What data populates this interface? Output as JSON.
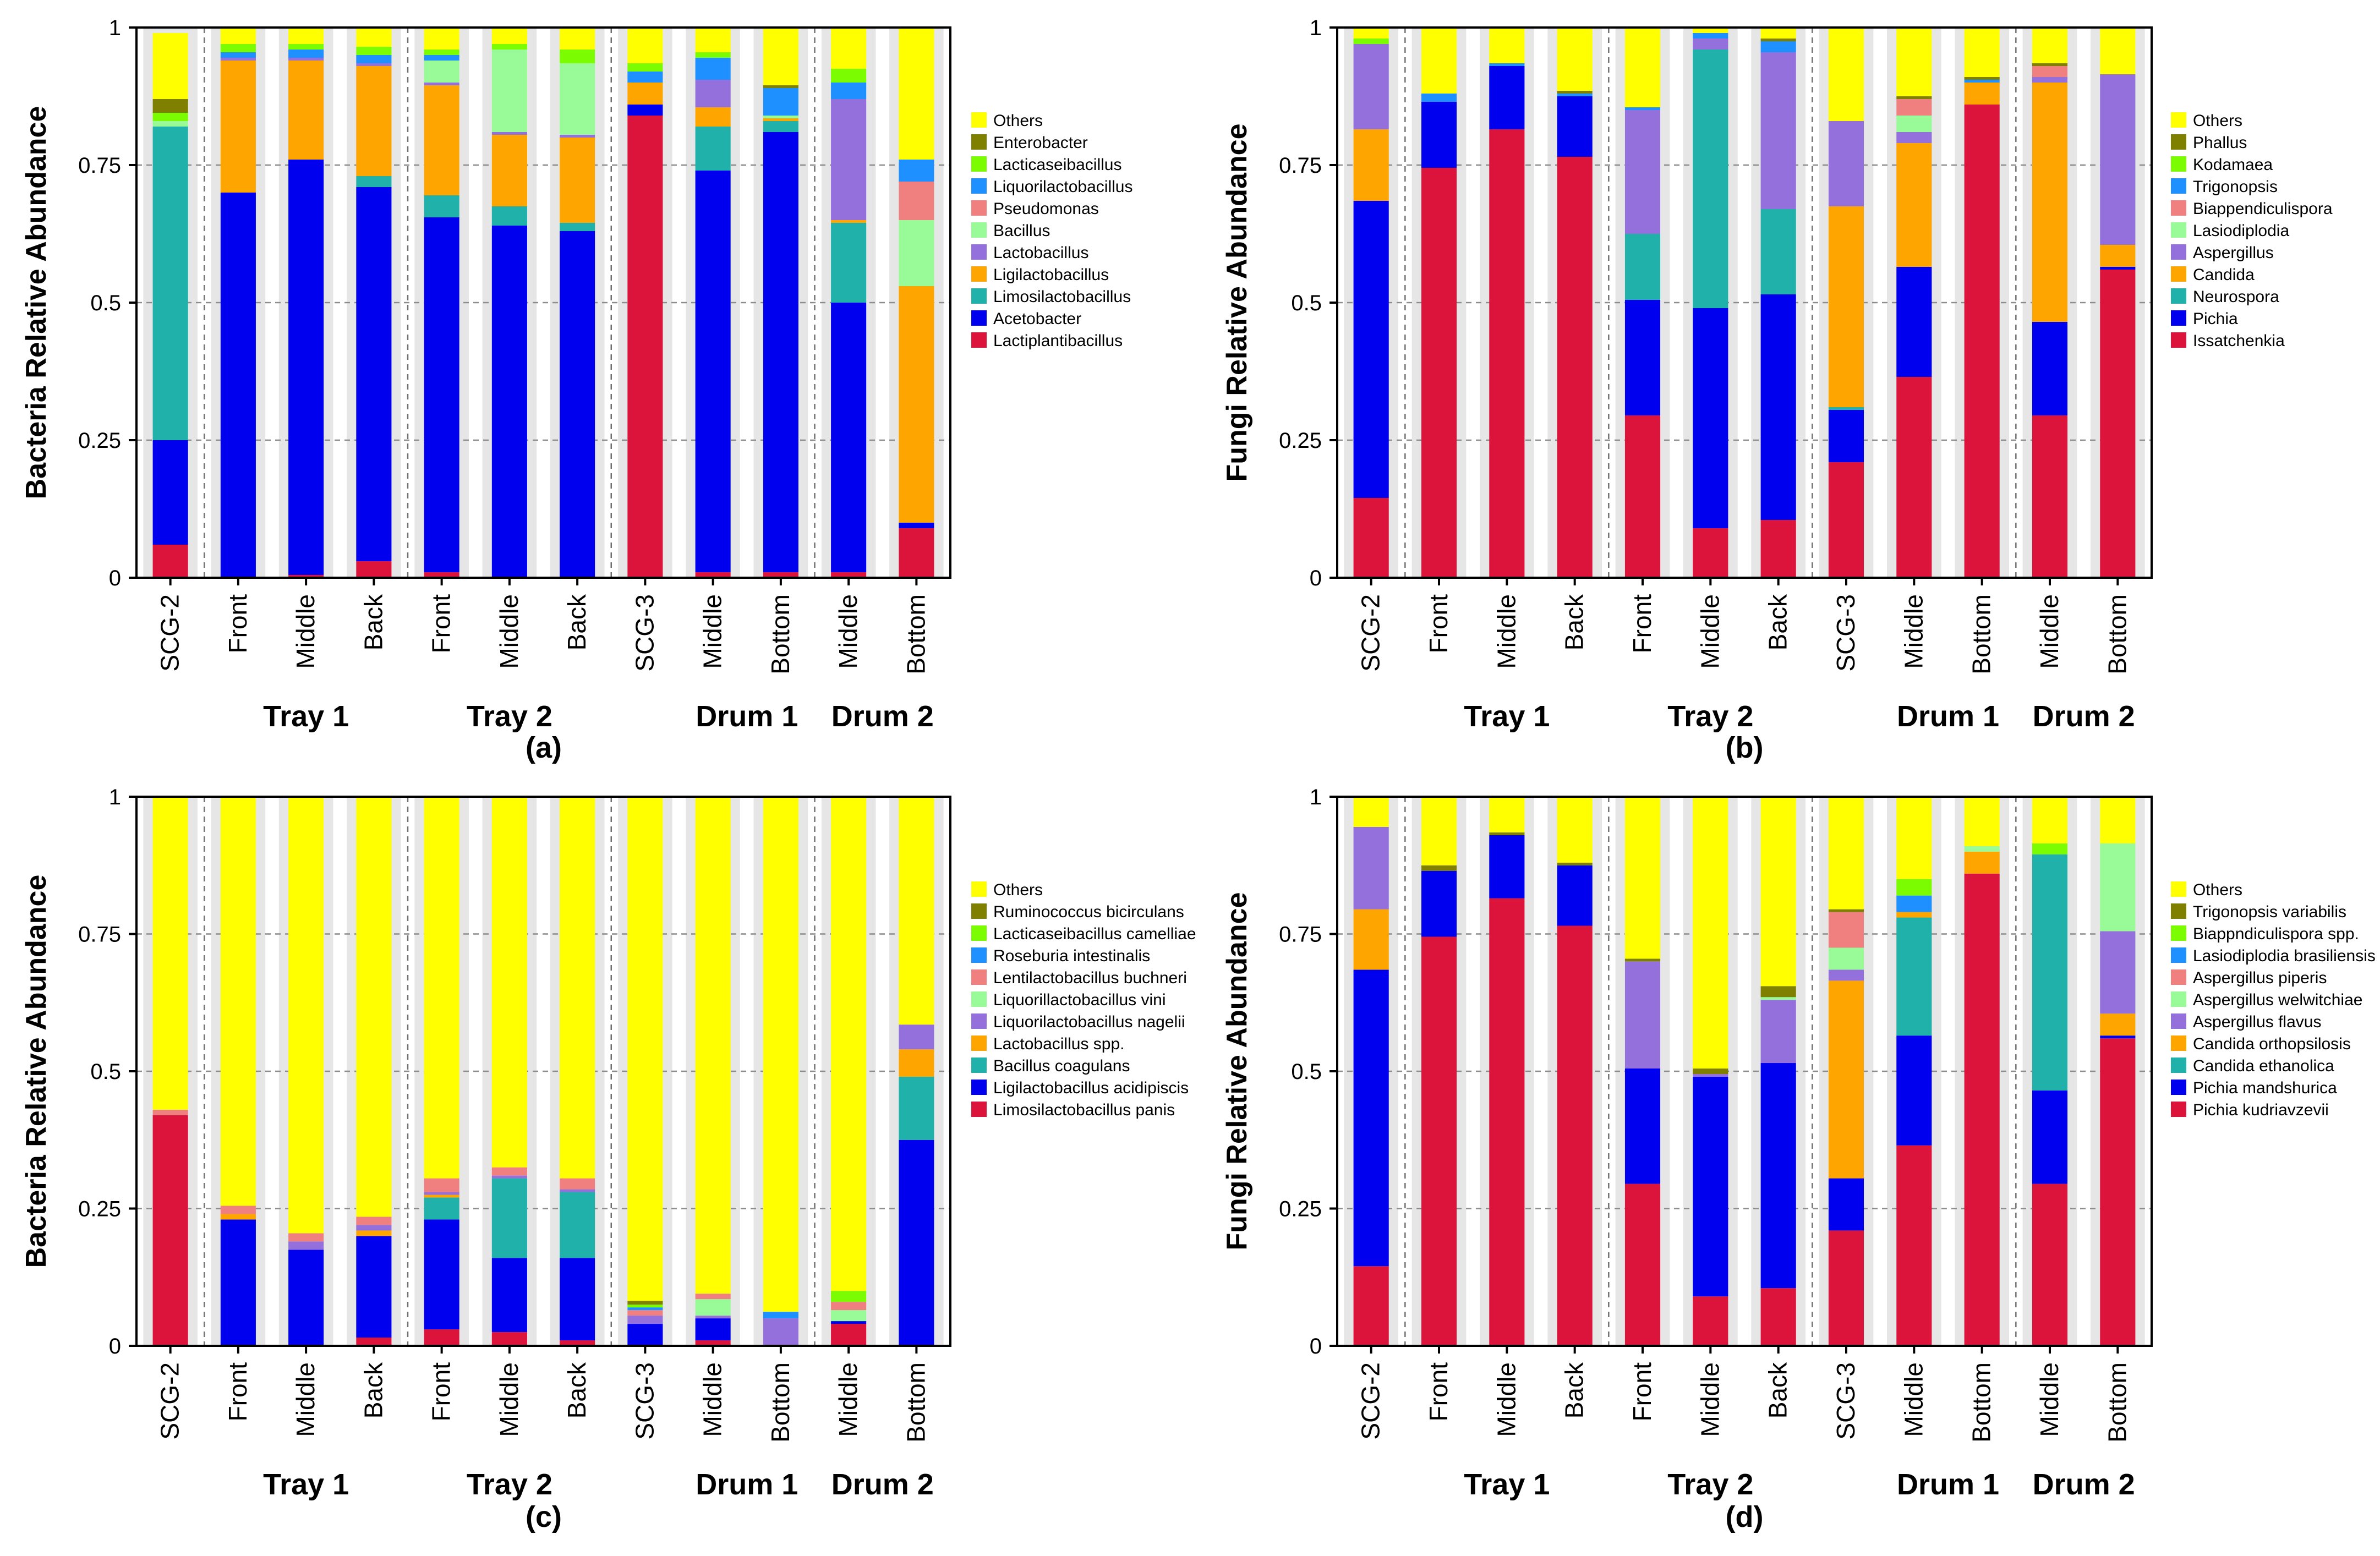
{
  "figure": {
    "categories": [
      "SCG-2",
      "Front",
      "Middle",
      "Back",
      "Front",
      "Middle",
      "Back",
      "SCG-3",
      "Middle",
      "Bottom",
      "Middle",
      "Bottom"
    ],
    "groups": [
      {
        "label": "Tray 1",
        "start": 1,
        "end": 3
      },
      {
        "label": "Tray 2",
        "start": 4,
        "end": 6
      },
      {
        "label": "Drum 1",
        "start": 8,
        "end": 9
      },
      {
        "label": "Drum 2",
        "start": 10,
        "end": 11
      }
    ],
    "separators_after": [
      0,
      3,
      6,
      9
    ],
    "yticks": [
      "0",
      "0.25",
      "0.5",
      "0.75",
      "1"
    ]
  },
  "chart_data": [
    {
      "type": "bar",
      "stacked": true,
      "panel": "(a)",
      "ylabel": "Bacteria Relative Abundance",
      "ylim": [
        0,
        1
      ],
      "series": [
        {
          "name": "Lactiplantibacillus",
          "color": "#DC143C",
          "values": [
            0.06,
            0.0,
            0.005,
            0.03,
            0.01,
            0.0,
            0.0,
            0.84,
            0.01,
            0.01,
            0.01,
            0.09
          ]
        },
        {
          "name": "Acetobacter",
          "color": "#0000EE",
          "values": [
            0.19,
            0.7,
            0.755,
            0.68,
            0.645,
            0.64,
            0.63,
            0.02,
            0.73,
            0.8,
            0.49,
            0.01
          ]
        },
        {
          "name": "Limosilactobacillus",
          "color": "#20B2AA",
          "values": [
            0.57,
            0.0,
            0.0,
            0.02,
            0.04,
            0.035,
            0.015,
            0.0,
            0.08,
            0.02,
            0.145,
            0.0
          ]
        },
        {
          "name": "Ligilactobacillus",
          "color": "#FFA500",
          "values": [
            0.0,
            0.24,
            0.18,
            0.2,
            0.2,
            0.13,
            0.155,
            0.04,
            0.035,
            0.005,
            0.005,
            0.43
          ]
        },
        {
          "name": "Lactobacillus",
          "color": "#9370DB",
          "values": [
            0.0,
            0.005,
            0.005,
            0.005,
            0.005,
            0.005,
            0.005,
            0.0,
            0.05,
            0.0,
            0.22,
            0.0
          ]
        },
        {
          "name": "Bacillus",
          "color": "#98FB98",
          "values": [
            0.01,
            0.0,
            0.0,
            0.0,
            0.04,
            0.15,
            0.13,
            0.0,
            0.0,
            0.005,
            0.0,
            0.12
          ]
        },
        {
          "name": "Pseudomonas",
          "color": "#F08080",
          "values": [
            0.0,
            0.0,
            0.0,
            0.0,
            0.0,
            0.0,
            0.0,
            0.0,
            0.0,
            0.0,
            0.0,
            0.07
          ]
        },
        {
          "name": "Liquorilactobacillus",
          "color": "#1E90FF",
          "values": [
            0.0,
            0.01,
            0.015,
            0.015,
            0.01,
            0.0,
            0.0,
            0.02,
            0.04,
            0.05,
            0.03,
            0.04
          ]
        },
        {
          "name": "Lacticaseibacillus",
          "color": "#7CFC00",
          "values": [
            0.015,
            0.015,
            0.01,
            0.015,
            0.01,
            0.01,
            0.025,
            0.015,
            0.01,
            0.0,
            0.025,
            0.0
          ]
        },
        {
          "name": "Enterobacter",
          "color": "#808000",
          "values": [
            0.025,
            0.0,
            0.0,
            0.0,
            0.0,
            0.0,
            0.0,
            0.0,
            0.0,
            0.005,
            0.0,
            0.0
          ]
        },
        {
          "name": "Others",
          "color": "#FFFF00",
          "values": [
            0.12,
            0.03,
            0.03,
            0.035,
            0.04,
            0.03,
            0.04,
            0.065,
            0.045,
            0.105,
            0.075,
            0.24
          ]
        }
      ]
    },
    {
      "type": "bar",
      "stacked": true,
      "panel": "(b)",
      "ylabel": "Fungi Relative Abundance",
      "ylim": [
        0,
        1
      ],
      "series": [
        {
          "name": "Issatchenkia",
          "color": "#DC143C",
          "values": [
            0.145,
            0.745,
            0.815,
            0.765,
            0.295,
            0.09,
            0.105,
            0.21,
            0.365,
            0.86,
            0.295,
            0.56
          ]
        },
        {
          "name": "Pichia",
          "color": "#0000EE",
          "values": [
            0.54,
            0.12,
            0.115,
            0.11,
            0.21,
            0.4,
            0.41,
            0.095,
            0.2,
            0.0,
            0.17,
            0.005
          ]
        },
        {
          "name": "Neurospora",
          "color": "#20B2AA",
          "values": [
            0.0,
            0.0,
            0.0,
            0.0,
            0.12,
            0.47,
            0.155,
            0.005,
            0.0,
            0.0,
            0.0,
            0.0
          ]
        },
        {
          "name": "Candida",
          "color": "#FFA500",
          "values": [
            0.13,
            0.0,
            0.0,
            0.0,
            0.0,
            0.0,
            0.0,
            0.365,
            0.225,
            0.04,
            0.435,
            0.04
          ]
        },
        {
          "name": "Aspergillus",
          "color": "#9370DB",
          "values": [
            0.155,
            0.0,
            0.0,
            0.0,
            0.225,
            0.02,
            0.285,
            0.155,
            0.02,
            0.0,
            0.01,
            0.31
          ]
        },
        {
          "name": "Lasiodiplodia",
          "color": "#98FB98",
          "values": [
            0.0,
            0.0,
            0.0,
            0.0,
            0.0,
            0.0,
            0.0,
            0.0,
            0.03,
            0.0,
            0.0,
            0.0
          ]
        },
        {
          "name": "Biappendiculispora",
          "color": "#F08080",
          "values": [
            0.0,
            0.0,
            0.0,
            0.0,
            0.0,
            0.0,
            0.0,
            0.0,
            0.03,
            0.0,
            0.02,
            0.0
          ]
        },
        {
          "name": "Trigonopsis",
          "color": "#1E90FF",
          "values": [
            0.0,
            0.015,
            0.005,
            0.005,
            0.005,
            0.01,
            0.02,
            0.0,
            0.0,
            0.005,
            0.0,
            0.0
          ]
        },
        {
          "name": "Kodamaea",
          "color": "#7CFC00",
          "values": [
            0.01,
            0.0,
            0.0,
            0.0,
            0.0,
            0.0,
            0.0,
            0.0,
            0.0,
            0.0,
            0.0,
            0.0
          ]
        },
        {
          "name": "Phallus",
          "color": "#808000",
          "values": [
            0.0,
            0.0,
            0.0,
            0.005,
            0.0,
            0.0,
            0.005,
            0.0,
            0.005,
            0.005,
            0.005,
            0.0
          ]
        },
        {
          "name": "Others",
          "color": "#FFFF00",
          "values": [
            0.02,
            0.12,
            0.065,
            0.115,
            0.145,
            0.01,
            0.025,
            0.17,
            0.125,
            0.09,
            0.065,
            0.085
          ]
        }
      ]
    },
    {
      "type": "bar",
      "stacked": true,
      "panel": "(c)",
      "ylabel": "Bacteria Relative Abundance",
      "ylim": [
        0,
        1
      ],
      "series": [
        {
          "name": "Limosilactobacillus panis",
          "color": "#DC143C",
          "values": [
            0.42,
            0.0,
            0.0,
            0.015,
            0.03,
            0.025,
            0.01,
            0.0,
            0.01,
            0.0,
            0.04,
            0.0
          ]
        },
        {
          "name": "Ligilactobacillus acidipiscis",
          "color": "#0000EE",
          "values": [
            0.0,
            0.23,
            0.175,
            0.185,
            0.2,
            0.135,
            0.15,
            0.04,
            0.04,
            0.0,
            0.005,
            0.375
          ]
        },
        {
          "name": "Bacillus coagulans",
          "color": "#20B2AA",
          "values": [
            0.0,
            0.0,
            0.0,
            0.0,
            0.04,
            0.145,
            0.12,
            0.0,
            0.0,
            0.0,
            0.0,
            0.115
          ]
        },
        {
          "name": "Lactobacillus spp.",
          "color": "#FFA500",
          "values": [
            0.0,
            0.01,
            0.0,
            0.01,
            0.005,
            0.0,
            0.0,
            0.0,
            0.0,
            0.0,
            0.0,
            0.05
          ]
        },
        {
          "name": "Liquorilactobacillus nagelii",
          "color": "#9370DB",
          "values": [
            0.0,
            0.0,
            0.015,
            0.01,
            0.005,
            0.005,
            0.005,
            0.015,
            0.005,
            0.05,
            0.0,
            0.045
          ]
        },
        {
          "name": "Liquorillactobacillus vini",
          "color": "#98FB98",
          "values": [
            0.0,
            0.0,
            0.0,
            0.0,
            0.0,
            0.0,
            0.0,
            0.0,
            0.03,
            0.0,
            0.02,
            0.0
          ]
        },
        {
          "name": "Lentilactobacillus buchneri",
          "color": "#F08080",
          "values": [
            0.01,
            0.015,
            0.015,
            0.015,
            0.025,
            0.015,
            0.02,
            0.01,
            0.01,
            0.0,
            0.015,
            0.0
          ]
        },
        {
          "name": "Roseburia intestinalis",
          "color": "#1E90FF",
          "values": [
            0.0,
            0.0,
            0.0,
            0.0,
            0.0,
            0.0,
            0.0,
            0.005,
            0.0,
            0.012,
            0.0,
            0.0
          ]
        },
        {
          "name": "Lacticaseibacillus camelliae",
          "color": "#7CFC00",
          "values": [
            0.0,
            0.0,
            0.0,
            0.0,
            0.0,
            0.0,
            0.0,
            0.005,
            0.0,
            0.0,
            0.02,
            0.0
          ]
        },
        {
          "name": "Ruminococcus bicirculans",
          "color": "#808000",
          "values": [
            0.0,
            0.0,
            0.0,
            0.0,
            0.0,
            0.0,
            0.0,
            0.007,
            0.0,
            0.0,
            0.0,
            0.0
          ]
        },
        {
          "name": "Others",
          "color": "#FFFF00",
          "values": [
            0.57,
            0.745,
            0.795,
            0.765,
            0.695,
            0.675,
            0.695,
            0.918,
            0.905,
            0.938,
            0.9,
            0.415
          ]
        }
      ]
    },
    {
      "type": "bar",
      "stacked": true,
      "panel": "(d)",
      "ylabel": "Fungi Relative Abundance",
      "ylim": [
        0,
        1
      ],
      "series": [
        {
          "name": "Pichia kudriavzevii",
          "color": "#DC143C",
          "values": [
            0.145,
            0.745,
            0.815,
            0.765,
            0.295,
            0.09,
            0.105,
            0.21,
            0.365,
            0.86,
            0.295,
            0.56
          ]
        },
        {
          "name": "Pichia mandshurica",
          "color": "#0000EE",
          "values": [
            0.54,
            0.12,
            0.115,
            0.11,
            0.21,
            0.4,
            0.41,
            0.095,
            0.2,
            0.0,
            0.17,
            0.005
          ]
        },
        {
          "name": "Candida ethanolica",
          "color": "#20B2AA",
          "values": [
            0.0,
            0.0,
            0.0,
            0.0,
            0.0,
            0.0,
            0.0,
            0.0,
            0.215,
            0.0,
            0.43,
            0.0
          ]
        },
        {
          "name": "Candida orthopsilosis",
          "color": "#FFA500",
          "values": [
            0.11,
            0.0,
            0.0,
            0.0,
            0.0,
            0.0,
            0.0,
            0.36,
            0.01,
            0.04,
            0.0,
            0.04
          ]
        },
        {
          "name": "Aspergillus flavus",
          "color": "#9370DB",
          "values": [
            0.15,
            0.0,
            0.0,
            0.0,
            0.195,
            0.005,
            0.115,
            0.02,
            0.0,
            0.0,
            0.0,
            0.15
          ]
        },
        {
          "name": "Aspergillus welwitchiae",
          "color": "#98FB98",
          "values": [
            0.0,
            0.0,
            0.0,
            0.0,
            0.0,
            0.0,
            0.005,
            0.04,
            0.0,
            0.01,
            0.0,
            0.16
          ]
        },
        {
          "name": "Aspergillus piperis",
          "color": "#F08080",
          "values": [
            0.0,
            0.0,
            0.0,
            0.0,
            0.0,
            0.0,
            0.0,
            0.065,
            0.0,
            0.0,
            0.0,
            0.0
          ]
        },
        {
          "name": "Lasiodiplodia brasiliensis",
          "color": "#1E90FF",
          "values": [
            0.0,
            0.0,
            0.0,
            0.0,
            0.0,
            0.0,
            0.0,
            0.0,
            0.03,
            0.0,
            0.0,
            0.0
          ]
        },
        {
          "name": "Biappndiculispora spp.",
          "color": "#7CFC00",
          "values": [
            0.0,
            0.0,
            0.0,
            0.0,
            0.0,
            0.0,
            0.0,
            0.0,
            0.03,
            0.0,
            0.02,
            0.0
          ]
        },
        {
          "name": "Trigonopsis variabilis",
          "color": "#808000",
          "values": [
            0.0,
            0.01,
            0.005,
            0.005,
            0.005,
            0.01,
            0.02,
            0.005,
            0.0,
            0.0,
            0.0,
            0.0
          ]
        },
        {
          "name": "Others",
          "color": "#FFFF00",
          "values": [
            0.055,
            0.125,
            0.065,
            0.12,
            0.295,
            0.495,
            0.345,
            0.205,
            0.15,
            0.09,
            0.085,
            0.085
          ]
        }
      ]
    }
  ]
}
